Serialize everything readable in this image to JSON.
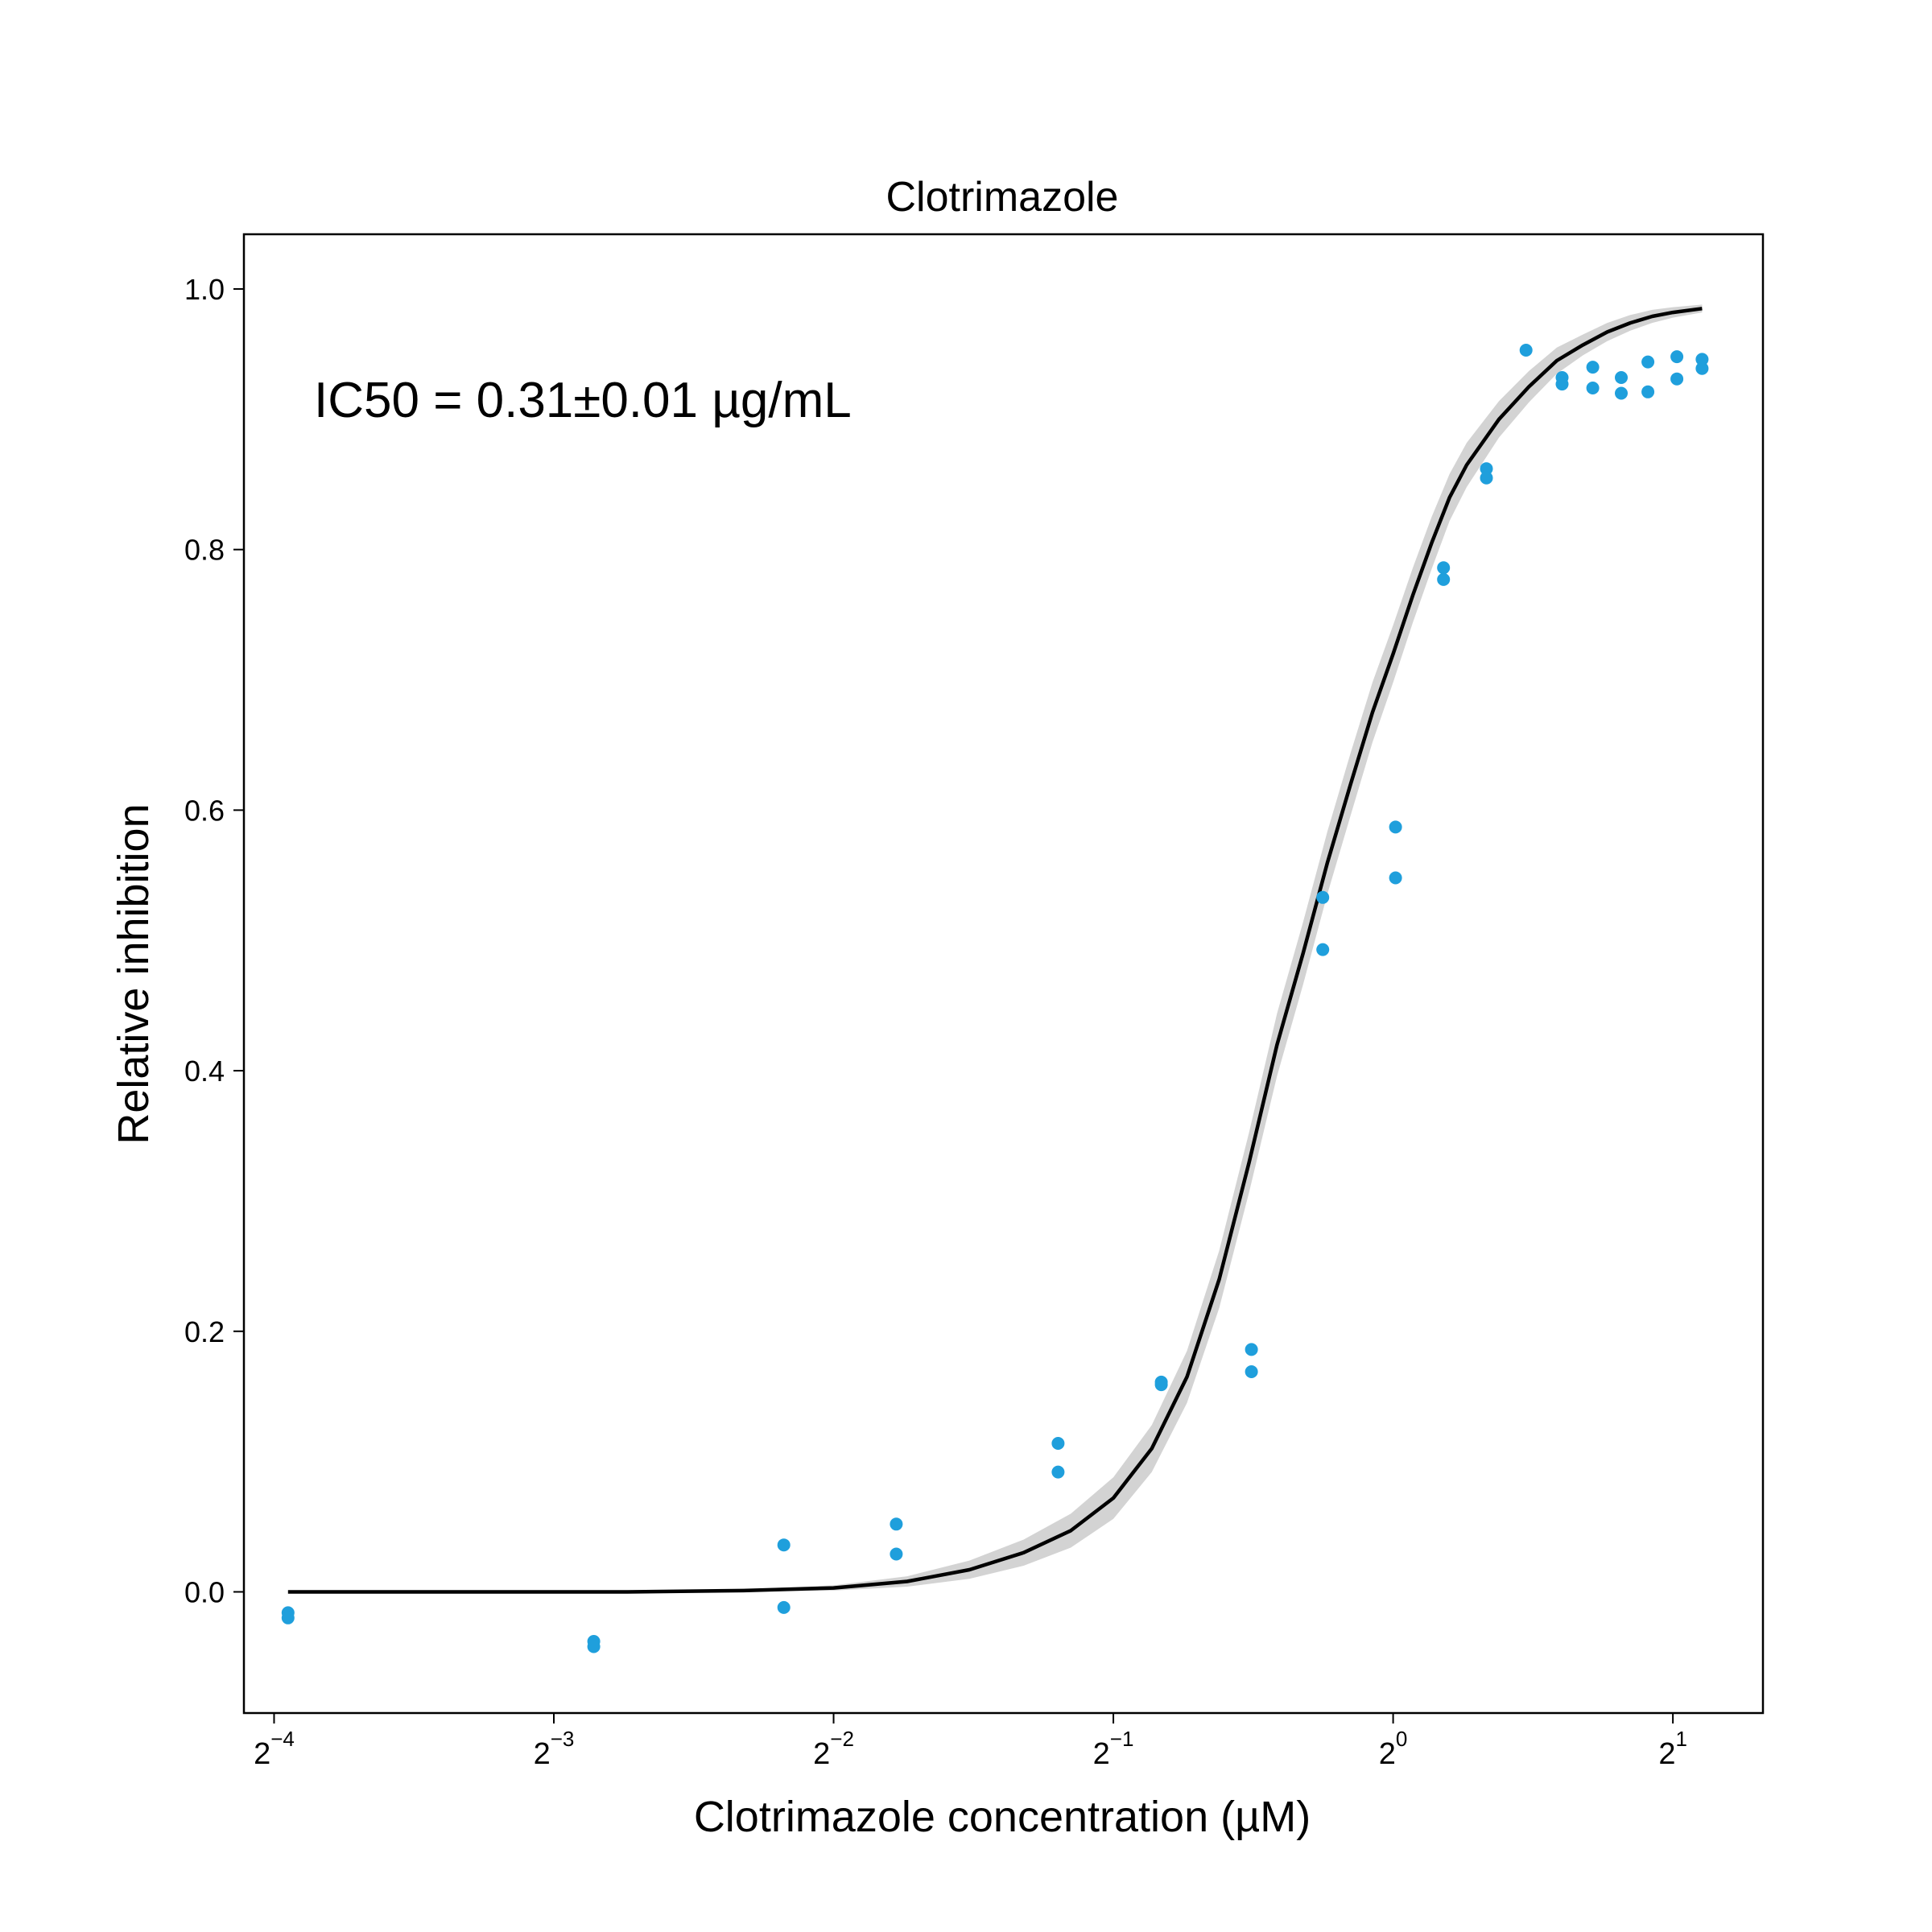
{
  "chart_data": {
    "type": "scatter",
    "title": "Clotrimazole",
    "xlabel": "Clotrimazole concentration (µM)",
    "ylabel": "Relative inhibition",
    "annotation": "IC50 = 0.31±0.01 µg/mL",
    "x_scale": "log2",
    "xlim": [
      0.058,
      2.5
    ],
    "ylim": [
      -0.093,
      1.042
    ],
    "x_ticks": [
      {
        "value": 0.0625,
        "base": "2",
        "exp": "−4"
      },
      {
        "value": 0.125,
        "base": "2",
        "exp": "−3"
      },
      {
        "value": 0.25,
        "base": "2",
        "exp": "−2"
      },
      {
        "value": 0.5,
        "base": "2",
        "exp": "−1"
      },
      {
        "value": 1,
        "base": "2",
        "exp": "0"
      },
      {
        "value": 2,
        "base": "2",
        "exp": "1"
      }
    ],
    "y_ticks": [
      {
        "value": 0.0,
        "label": "0.0"
      },
      {
        "value": 0.2,
        "label": "0.2"
      },
      {
        "value": 0.4,
        "label": "0.4"
      },
      {
        "value": 0.6,
        "label": "0.6"
      },
      {
        "value": 0.8,
        "label": "0.8"
      },
      {
        "value": 1.0,
        "label": "1.0"
      }
    ],
    "grid": false,
    "series": [
      {
        "kind": "points",
        "color": "#1f9fdc",
        "points": [
          {
            "x": 0.0647,
            "y": -0.016
          },
          {
            "x": 0.0647,
            "y": -0.02
          },
          {
            "x": 0.138,
            "y": -0.038
          },
          {
            "x": 0.138,
            "y": -0.042
          },
          {
            "x": 0.221,
            "y": 0.036
          },
          {
            "x": 0.221,
            "y": -0.012
          },
          {
            "x": 0.292,
            "y": 0.052
          },
          {
            "x": 0.292,
            "y": 0.029
          },
          {
            "x": 0.436,
            "y": 0.114
          },
          {
            "x": 0.436,
            "y": 0.092
          },
          {
            "x": 0.563,
            "y": 0.161
          },
          {
            "x": 0.563,
            "y": 0.159
          },
          {
            "x": 0.704,
            "y": 0.186
          },
          {
            "x": 0.704,
            "y": 0.169
          },
          {
            "x": 0.84,
            "y": 0.533
          },
          {
            "x": 0.84,
            "y": 0.493
          },
          {
            "x": 1.006,
            "y": 0.587
          },
          {
            "x": 1.006,
            "y": 0.548
          },
          {
            "x": 1.133,
            "y": 0.786
          },
          {
            "x": 1.133,
            "y": 0.777
          },
          {
            "x": 1.26,
            "y": 0.862
          },
          {
            "x": 1.26,
            "y": 0.855
          },
          {
            "x": 1.39,
            "y": 0.953
          },
          {
            "x": 1.52,
            "y": 0.932
          },
          {
            "x": 1.52,
            "y": 0.927
          },
          {
            "x": 1.64,
            "y": 0.94
          },
          {
            "x": 1.64,
            "y": 0.924
          },
          {
            "x": 1.76,
            "y": 0.932
          },
          {
            "x": 1.76,
            "y": 0.92
          },
          {
            "x": 1.88,
            "y": 0.944
          },
          {
            "x": 1.88,
            "y": 0.921
          },
          {
            "x": 2.02,
            "y": 0.948
          },
          {
            "x": 2.02,
            "y": 0.931
          },
          {
            "x": 2.15,
            "y": 0.946
          },
          {
            "x": 2.15,
            "y": 0.939
          }
        ]
      },
      {
        "kind": "fit",
        "color": "#000000",
        "band_color": "#d3d3d3",
        "x": [
          0.0647,
          0.1,
          0.15,
          0.2,
          0.25,
          0.3,
          0.35,
          0.4,
          0.45,
          0.5,
          0.55,
          0.6,
          0.65,
          0.7,
          0.75,
          0.8,
          0.85,
          0.9,
          0.95,
          1.0,
          1.05,
          1.1,
          1.15,
          1.2,
          1.3,
          1.4,
          1.5,
          1.6,
          1.7,
          1.8,
          1.9,
          2.0,
          2.15
        ],
        "y": [
          0.0,
          0.0,
          0.0,
          0.001,
          0.003,
          0.008,
          0.017,
          0.03,
          0.047,
          0.072,
          0.11,
          0.165,
          0.24,
          0.33,
          0.42,
          0.49,
          0.56,
          0.62,
          0.675,
          0.72,
          0.765,
          0.805,
          0.84,
          0.865,
          0.9,
          0.925,
          0.945,
          0.957,
          0.967,
          0.974,
          0.979,
          0.982,
          0.985
        ],
        "band_half_width": [
          0.0,
          0.0,
          0.0,
          0.001,
          0.002,
          0.004,
          0.007,
          0.01,
          0.013,
          0.016,
          0.018,
          0.02,
          0.022,
          0.023,
          0.024,
          0.024,
          0.024,
          0.024,
          0.023,
          0.022,
          0.021,
          0.02,
          0.018,
          0.017,
          0.014,
          0.012,
          0.01,
          0.008,
          0.007,
          0.006,
          0.005,
          0.004,
          0.003
        ]
      }
    ]
  }
}
